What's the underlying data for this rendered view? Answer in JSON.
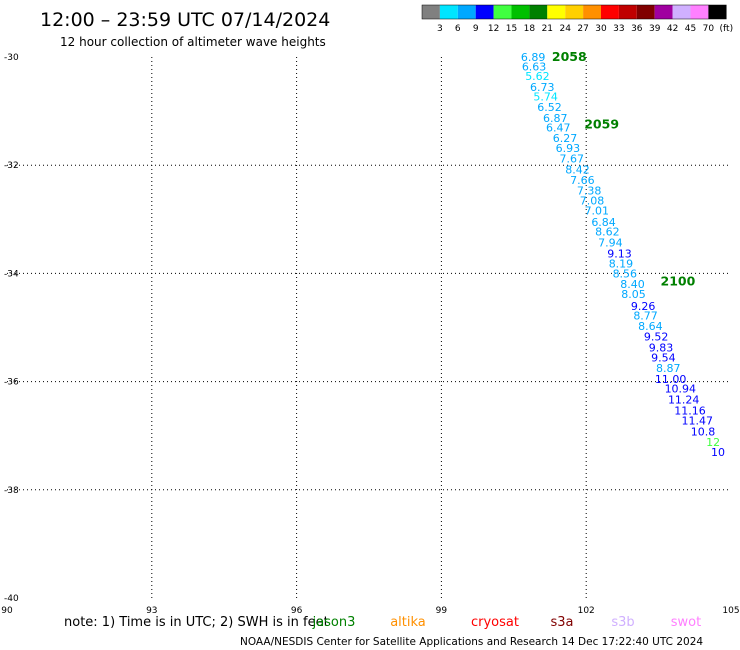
{
  "title": "12:00 – 23:59 UTC 07/14/2024",
  "subtitle": "12 hour collection of altimeter wave heights",
  "colorbar": {
    "colors": [
      "#808080",
      "#00e5ff",
      "#00a8ff",
      "#0000ff",
      "#40ff40",
      "#00c000",
      "#008000",
      "#ffff00",
      "#ffd000",
      "#ff9000",
      "#ff0000",
      "#c00000",
      "#800000",
      "#a000a0",
      "#d0b0ff",
      "#ff80ff",
      "#000000"
    ],
    "labels": [
      "3",
      "6",
      "9",
      "12",
      "15",
      "18",
      "21",
      "24",
      "27",
      "30",
      "33",
      "36",
      "39",
      "42",
      "45",
      "70",
      "(ft)"
    ]
  },
  "chart_data": {
    "type": "scatter",
    "x_ticks": [
      "90",
      "93",
      "96",
      "99",
      "102",
      "105"
    ],
    "y_ticks": [
      "-30",
      "-32",
      "-34",
      "-36",
      "-38",
      "-40"
    ],
    "xlim": [
      90,
      105
    ],
    "ylim": [
      -40,
      -30
    ],
    "grid": true,
    "time_labels": [
      {
        "text": "2058",
        "lon": 101.65,
        "lat": -30.0
      },
      {
        "text": "2059",
        "lon": 102.32,
        "lat": -31.25
      },
      {
        "text": "2100",
        "lon": 103.9,
        "lat": -34.15
      }
    ],
    "points": [
      {
        "lon": 100.9,
        "lat": -30.0,
        "v": "6.89",
        "c": "#00a8ff"
      },
      {
        "lon": 100.92,
        "lat": -30.18,
        "v": "6.63",
        "c": "#00a8ff"
      },
      {
        "lon": 100.99,
        "lat": -30.35,
        "v": "5.62",
        "c": "#00e5ff"
      },
      {
        "lon": 101.09,
        "lat": -30.55,
        "v": "6.73",
        "c": "#00a8ff"
      },
      {
        "lon": 101.16,
        "lat": -30.73,
        "v": "5.74",
        "c": "#00e5ff"
      },
      {
        "lon": 101.24,
        "lat": -30.92,
        "v": "6.52",
        "c": "#00a8ff"
      },
      {
        "lon": 101.36,
        "lat": -31.13,
        "v": "6.87",
        "c": "#00a8ff"
      },
      {
        "lon": 101.42,
        "lat": -31.3,
        "v": "6.47",
        "c": "#00a8ff"
      },
      {
        "lon": 101.56,
        "lat": -31.5,
        "v": "6.27",
        "c": "#00a8ff"
      },
      {
        "lon": 101.62,
        "lat": -31.68,
        "v": "6.93",
        "c": "#00a8ff"
      },
      {
        "lon": 101.7,
        "lat": -31.88,
        "v": "7.67",
        "c": "#00a8ff"
      },
      {
        "lon": 101.82,
        "lat": -32.08,
        "v": "8.42",
        "c": "#00a8ff"
      },
      {
        "lon": 101.92,
        "lat": -32.27,
        "v": "7.66",
        "c": "#00a8ff"
      },
      {
        "lon": 102.06,
        "lat": -32.47,
        "v": "7.38",
        "c": "#00a8ff"
      },
      {
        "lon": 102.12,
        "lat": -32.65,
        "v": "7.08",
        "c": "#00a8ff"
      },
      {
        "lon": 102.22,
        "lat": -32.84,
        "v": "7.01",
        "c": "#00a8ff"
      },
      {
        "lon": 102.36,
        "lat": -33.05,
        "v": "6.84",
        "c": "#00a8ff"
      },
      {
        "lon": 102.44,
        "lat": -33.23,
        "v": "8.62",
        "c": "#00a8ff"
      },
      {
        "lon": 102.5,
        "lat": -33.43,
        "v": "7.94",
        "c": "#00a8ff"
      },
      {
        "lon": 102.69,
        "lat": -33.63,
        "v": "9.13",
        "c": "#0000ff"
      },
      {
        "lon": 102.72,
        "lat": -33.82,
        "v": "8.19",
        "c": "#00a8ff"
      },
      {
        "lon": 102.8,
        "lat": -34.0,
        "v": "8.56",
        "c": "#00a8ff"
      },
      {
        "lon": 102.96,
        "lat": -34.2,
        "v": "8.40",
        "c": "#00a8ff"
      },
      {
        "lon": 102.98,
        "lat": -34.38,
        "v": "8.05",
        "c": "#00a8ff"
      },
      {
        "lon": 103.18,
        "lat": -34.6,
        "v": "9.26",
        "c": "#0000ff"
      },
      {
        "lon": 103.23,
        "lat": -34.78,
        "v": "8.77",
        "c": "#00a8ff"
      },
      {
        "lon": 103.33,
        "lat": -34.97,
        "v": "8.64",
        "c": "#00a8ff"
      },
      {
        "lon": 103.45,
        "lat": -35.17,
        "v": "9.52",
        "c": "#0000ff"
      },
      {
        "lon": 103.55,
        "lat": -35.37,
        "v": "9.83",
        "c": "#0000ff"
      },
      {
        "lon": 103.6,
        "lat": -35.55,
        "v": "9.54",
        "c": "#0000ff"
      },
      {
        "lon": 103.7,
        "lat": -35.75,
        "v": "8.87",
        "c": "#00a8ff"
      },
      {
        "lon": 103.75,
        "lat": -35.95,
        "v": "11.00",
        "c": "#0000ff"
      },
      {
        "lon": 103.95,
        "lat": -36.13,
        "v": "10.94",
        "c": "#0000ff"
      },
      {
        "lon": 104.02,
        "lat": -36.33,
        "v": "11.24",
        "c": "#0000ff"
      },
      {
        "lon": 104.15,
        "lat": -36.53,
        "v": "11.16",
        "c": "#0000ff"
      },
      {
        "lon": 104.3,
        "lat": -36.72,
        "v": "11.47",
        "c": "#0000ff"
      },
      {
        "lon": 104.42,
        "lat": -36.92,
        "v": "10.8",
        "c": "#0000ff"
      },
      {
        "lon": 104.63,
        "lat": -37.12,
        "v": "12",
        "c": "#40ff40"
      },
      {
        "lon": 104.73,
        "lat": -37.3,
        "v": "10",
        "c": "#0000ff"
      }
    ]
  },
  "note": "note: 1) Time is in UTC; 2) SWH is in feet",
  "missions": [
    {
      "name": "jason3",
      "color": "#008000"
    },
    {
      "name": "altika",
      "color": "#ff9000"
    },
    {
      "name": "cryosat",
      "color": "#ff0000"
    },
    {
      "name": "s3a",
      "color": "#800000"
    },
    {
      "name": "s3b",
      "color": "#d0b0ff"
    },
    {
      "name": "swot",
      "color": "#ff80ff"
    }
  ],
  "footer": "NOAA/NESDIS Center for Satellite Applications and Research     14 Dec 17:22:40 UTC 2024"
}
